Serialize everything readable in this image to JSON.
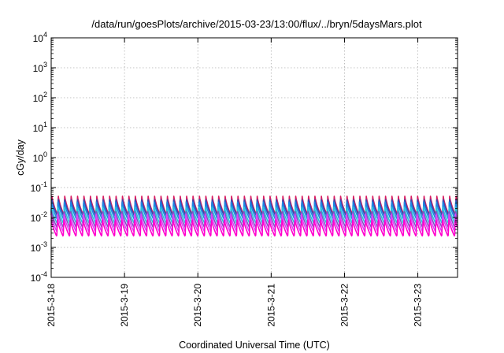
{
  "chart_data": {
    "type": "line",
    "title": "/data/run/goesPlots/archive/2015-03-23/13:00/flux/../bryn/5daysMars.plot",
    "xlabel": "Coordinated Universal Time (UTC)",
    "ylabel": "cGy/day",
    "yscale": "log",
    "ylim": [
      0.0001,
      10000
    ],
    "xlim": [
      "2015-03-18T00:00",
      "2015-03-23T13:00"
    ],
    "y_tick_labels": [
      {
        "base": "10",
        "exp": "-4"
      },
      {
        "base": "10",
        "exp": "-3"
      },
      {
        "base": "10",
        "exp": "-2"
      },
      {
        "base": "10",
        "exp": "-1"
      },
      {
        "base": "10",
        "exp": "0"
      },
      {
        "base": "10",
        "exp": "1"
      },
      {
        "base": "10",
        "exp": "2"
      },
      {
        "base": "10",
        "exp": "3"
      },
      {
        "base": "10",
        "exp": "4"
      }
    ],
    "x_tick_labels": [
      "2015-3-18",
      "2015-3-19",
      "2015-3-20",
      "2015-3-21",
      "2015-3-22",
      "2015-3-23"
    ],
    "grid": true,
    "legend": "none",
    "cycle_period_hours": 2.1,
    "series": [
      {
        "color": "#d81b60",
        "peak": 0.055,
        "trough": 0.012
      },
      {
        "color": "#3949ab",
        "peak": 0.045,
        "trough": 0.011
      },
      {
        "color": "#1e88e5",
        "peak": 0.035,
        "trough": 0.0085
      },
      {
        "color": "#26c6da",
        "peak": 0.024,
        "trough": 0.0062
      },
      {
        "color": "#7e57c2",
        "peak": 0.018,
        "trough": 0.0045
      },
      {
        "color": "#e040fb",
        "peak": 0.013,
        "trough": 0.0033
      },
      {
        "color": "#ff00cc",
        "peak": 0.009,
        "trough": 0.0023
      }
    ]
  }
}
